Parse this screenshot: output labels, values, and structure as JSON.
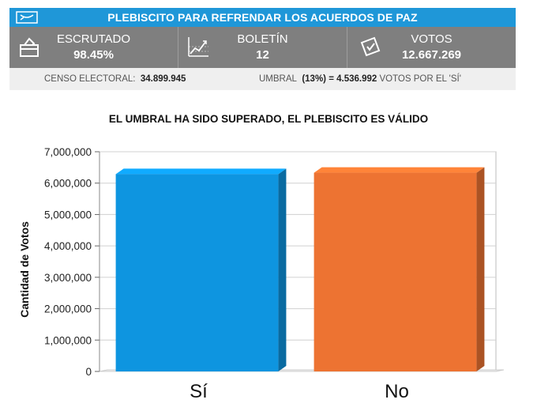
{
  "header": {
    "title": "PLEBISCITO PARA REFRENDAR LOS ACUERDOS DE PAZ",
    "brand_color": "#1f97d8"
  },
  "stats": [
    {
      "label": "ESCRUTADO",
      "value": "98.45%",
      "icon": "ballot-box-icon"
    },
    {
      "label": "BOLETÍN",
      "value": "12",
      "icon": "line-chart-icon"
    },
    {
      "label": "VOTOS",
      "value": "12.667.269",
      "icon": "ballot-paper-icon"
    }
  ],
  "info": {
    "censo_label": "CENSO ELECTORAL:",
    "censo_value": "34.899.945",
    "umbral_label": "UMBRAL",
    "umbral_value": "(13%) = 4.536.992",
    "umbral_suffix": "VOTOS POR EL 'SÍ'"
  },
  "subtitle": "EL UMBRAL HA SIDO SUPERADO, EL PLEBISCITO ES VÁLIDO",
  "chart_data": {
    "type": "bar",
    "categories": [
      "Sí",
      "No"
    ],
    "values": [
      6287000,
      6331000
    ],
    "colors": [
      "#0e95e0",
      "#ed7332"
    ],
    "ylabel": "Cantidad de Votos",
    "xlabel": "",
    "ylim": [
      0,
      7000000
    ],
    "yticks": [
      "0",
      "1,000,000",
      "2,000,000",
      "3,000,000",
      "4,000,000",
      "5,000,000",
      "6,000,000",
      "7,000,000"
    ],
    "grid": true
  }
}
